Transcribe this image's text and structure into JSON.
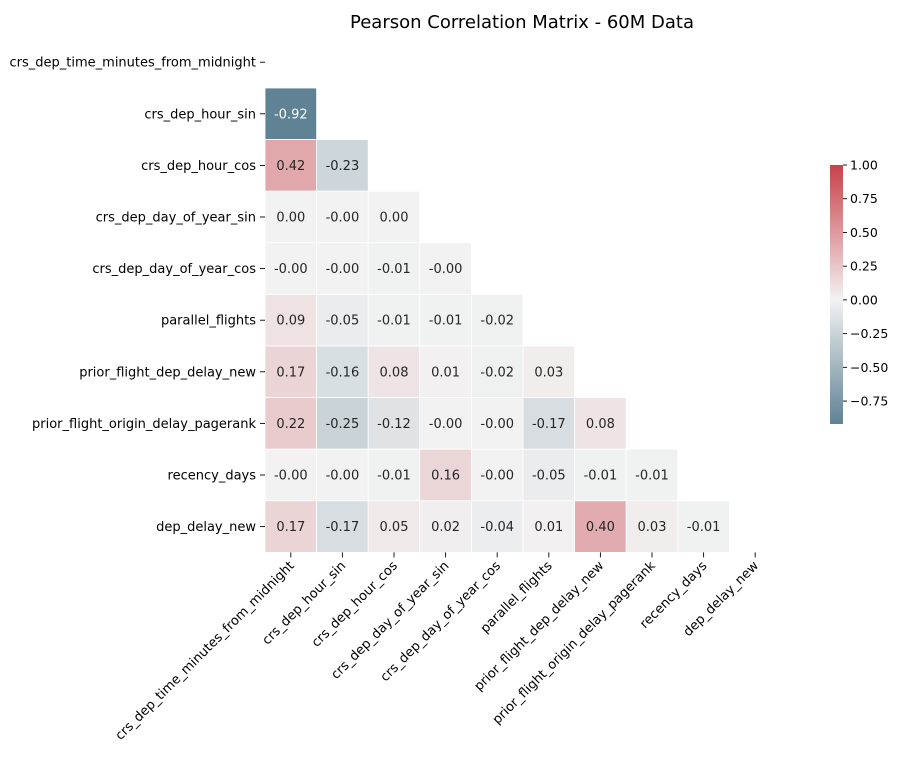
{
  "chart_data": {
    "type": "heatmap",
    "title": "Pearson Correlation Matrix - 60M Data",
    "variables": [
      "crs_dep_time_minutes_from_midnight",
      "crs_dep_hour_sin",
      "crs_dep_hour_cos",
      "crs_dep_day_of_year_sin",
      "crs_dep_day_of_year_cos",
      "parallel_flights",
      "prior_flight_dep_delay_new",
      "prior_flight_origin_delay_pagerank",
      "recency_days",
      "dep_delay_new"
    ],
    "lower_triangle": [
      [],
      [
        -0.92
      ],
      [
        0.42,
        -0.23
      ],
      [
        0.0,
        -0.0,
        0.0
      ],
      [
        -0.0,
        -0.0,
        -0.01,
        -0.0
      ],
      [
        0.09,
        -0.05,
        -0.01,
        -0.01,
        -0.02
      ],
      [
        0.17,
        -0.16,
        0.08,
        0.01,
        -0.02,
        0.03
      ],
      [
        0.22,
        -0.25,
        -0.12,
        -0.0,
        -0.0,
        -0.17,
        0.08
      ],
      [
        -0.0,
        -0.0,
        -0.01,
        0.16,
        -0.0,
        -0.05,
        -0.01,
        -0.01
      ],
      [
        0.17,
        -0.17,
        0.05,
        0.02,
        -0.04,
        0.01,
        0.4,
        0.03,
        -0.01
      ]
    ],
    "cell_labels": [
      [],
      [
        "-0.92"
      ],
      [
        "0.42",
        "-0.23"
      ],
      [
        "0.00",
        "-0.00",
        "0.00"
      ],
      [
        "-0.00",
        "-0.00",
        "-0.01",
        "-0.00"
      ],
      [
        "0.09",
        "-0.05",
        "-0.01",
        "-0.01",
        "-0.02"
      ],
      [
        "0.17",
        "-0.16",
        "0.08",
        "0.01",
        "-0.02",
        "0.03"
      ],
      [
        "0.22",
        "-0.25",
        "-0.12",
        "-0.00",
        "-0.00",
        "-0.17",
        "0.08"
      ],
      [
        "-0.00",
        "-0.00",
        "-0.01",
        "0.16",
        "-0.00",
        "-0.05",
        "-0.01",
        "-0.01"
      ],
      [
        "0.17",
        "-0.17",
        "0.05",
        "0.02",
        "-0.04",
        "0.01",
        "0.40",
        "0.03",
        "-0.01"
      ]
    ],
    "mask": "upper triangle including diagonal",
    "colormap": {
      "type": "diverging",
      "negative_color": "#5f8294",
      "center_color": "#f2f2f2",
      "positive_color": "#c8414a",
      "range": [
        -0.92,
        1.0
      ]
    },
    "colorbar": {
      "ticks": [
        1.0,
        0.75,
        0.5,
        0.25,
        0.0,
        -0.25,
        -0.5,
        -0.75
      ],
      "tick_labels": [
        "1.00",
        "0.75",
        "0.50",
        "0.25",
        "0.00",
        "−0.25",
        "−0.50",
        "−0.75"
      ]
    },
    "grid": false,
    "legend": "colorbar right"
  }
}
